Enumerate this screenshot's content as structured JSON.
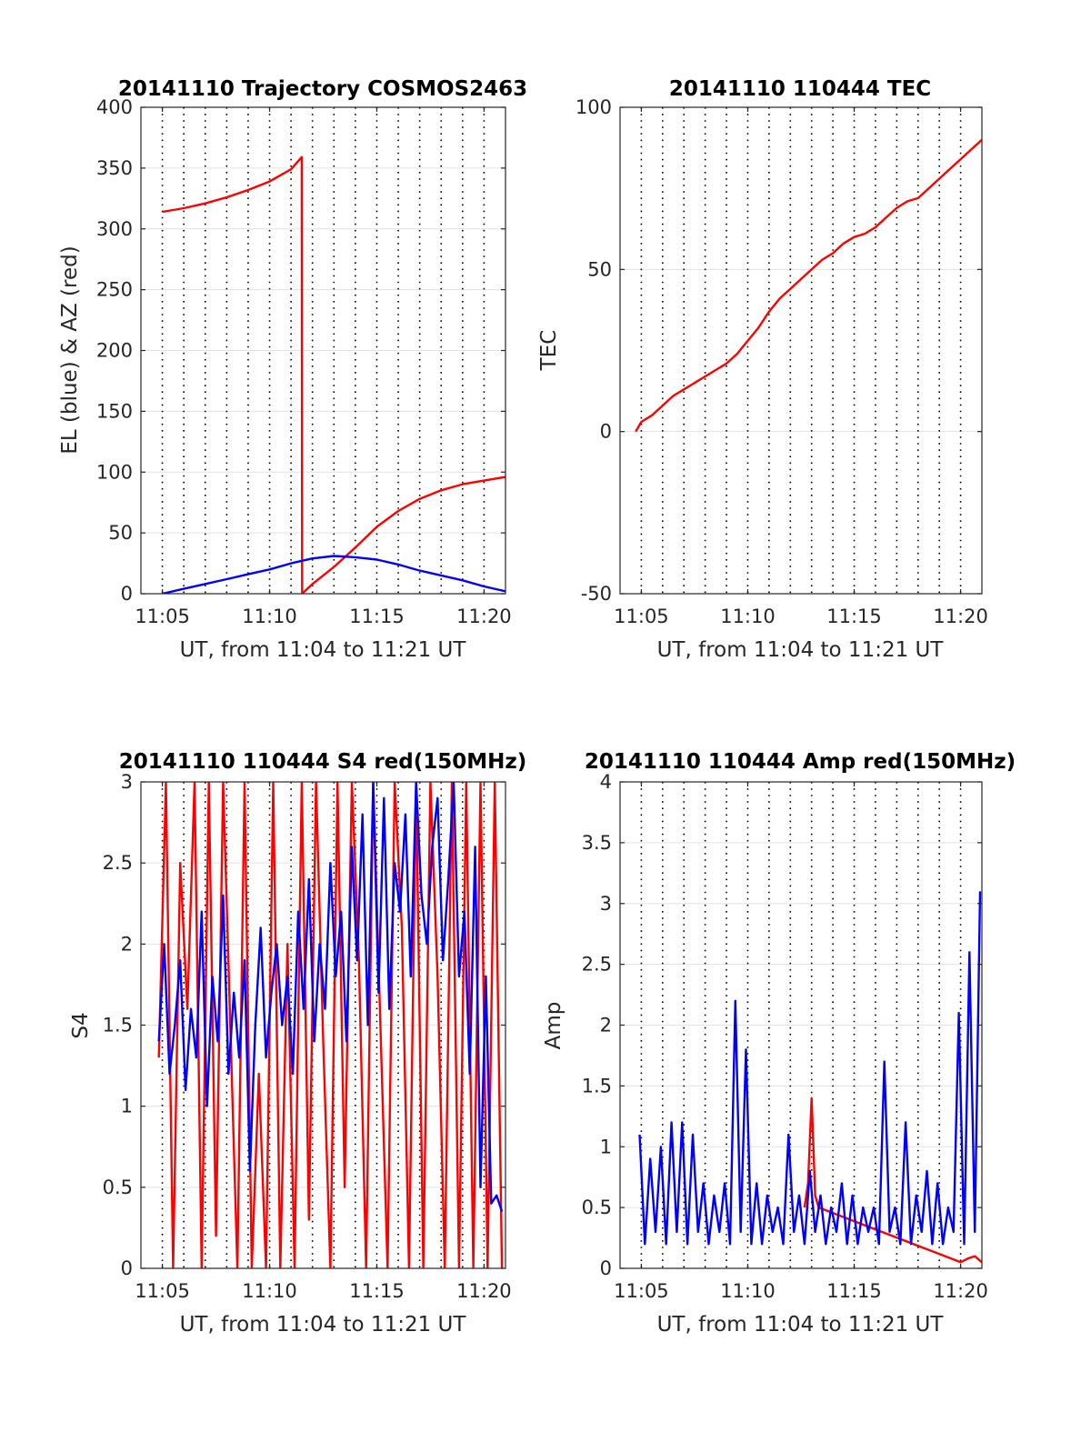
{
  "figure": {
    "colors": {
      "background": "#ffffff",
      "grid": "#e3e3e3",
      "axis": "#262626",
      "red_series": "#ff0000",
      "blue_series": "#0000ff"
    }
  },
  "chart_data": [
    {
      "type": "line",
      "title": "20141110 Trajectory COSMOS2463",
      "xlabel": "UT, from 11:04 to 11:21 UT",
      "ylabel": "EL (blue) & AZ (red)",
      "xlim": [
        "11:04:00",
        "11:21:00"
      ],
      "xticks": [
        "11:05",
        "11:10",
        "11:15",
        "11:20"
      ],
      "ylim": [
        0,
        400
      ],
      "yticks": [
        "0",
        "50",
        "100",
        "150",
        "200",
        "250",
        "300",
        "350",
        "400"
      ],
      "grid": "horizontal",
      "vertical_markers": "dotted, every minute",
      "series": [
        {
          "color": "#ff0000",
          "x": [
            "11:05:00",
            "11:06:00",
            "11:07:00",
            "11:08:00",
            "11:09:00",
            "11:10:00",
            "11:11:00",
            "11:11:30",
            "11:11:31",
            "11:12:00",
            "11:13:00",
            "11:14:00",
            "11:15:00",
            "11:16:00",
            "11:17:00",
            "11:18:00",
            "11:19:00",
            "11:20:00",
            "11:21:00"
          ],
          "y": [
            314,
            317,
            321,
            326,
            332,
            339,
            349,
            359,
            0,
            8,
            22,
            38,
            55,
            68,
            78,
            85,
            90,
            93,
            96
          ]
        },
        {
          "color": "#0000ff",
          "x": [
            "11:05:00",
            "11:06:00",
            "11:07:00",
            "11:08:00",
            "11:09:00",
            "11:10:00",
            "11:11:00",
            "11:12:00",
            "11:13:00",
            "11:14:00",
            "11:15:00",
            "11:16:00",
            "11:17:00",
            "11:18:00",
            "11:19:00",
            "11:20:00",
            "11:21:00"
          ],
          "y": [
            0,
            4,
            8,
            12,
            16,
            20,
            25,
            29,
            31,
            30,
            28,
            24,
            19,
            15,
            11,
            6,
            2
          ]
        }
      ]
    },
    {
      "type": "line",
      "title": "20141110 110444 TEC",
      "xlabel": "UT, from 11:04 to 11:21 UT",
      "ylabel": "TEC",
      "xlim": [
        "11:04:00",
        "11:21:00"
      ],
      "xticks": [
        "11:05",
        "11:10",
        "11:15",
        "11:20"
      ],
      "ylim": [
        -50,
        100
      ],
      "yticks": [
        "-50",
        "0",
        "50",
        "100"
      ],
      "grid": "horizontal",
      "vertical_markers": "dotted, every minute",
      "series": [
        {
          "color": "#ff0000",
          "x": [
            "11:04:44",
            "11:05:00",
            "11:05:30",
            "11:06:00",
            "11:06:30",
            "11:07:00",
            "11:07:30",
            "11:08:00",
            "11:08:30",
            "11:09:00",
            "11:09:30",
            "11:10:00",
            "11:10:30",
            "11:11:00",
            "11:11:30",
            "11:12:00",
            "11:12:30",
            "11:13:00",
            "11:13:30",
            "11:14:00",
            "11:14:30",
            "11:15:00",
            "11:15:30",
            "11:16:00",
            "11:16:30",
            "11:17:00",
            "11:17:30",
            "11:18:00",
            "11:18:30",
            "11:19:00",
            "11:19:30",
            "11:20:00",
            "11:20:30",
            "11:21:00"
          ],
          "y": [
            0,
            3,
            5,
            8,
            11,
            13,
            15,
            17,
            19,
            21,
            24,
            28,
            32,
            37,
            41,
            44,
            47,
            50,
            53,
            55,
            58,
            60,
            61,
            63,
            66,
            69,
            71,
            72,
            75,
            78,
            81,
            84,
            87,
            90
          ]
        }
      ]
    },
    {
      "type": "line",
      "title": "20141110 110444 S4 red(150MHz)",
      "xlabel": "UT, from 11:04 to 11:21 UT",
      "ylabel": "S4",
      "xlim": [
        "11:04:00",
        "11:21:00"
      ],
      "xticks": [
        "11:05",
        "11:10",
        "11:15",
        "11:20"
      ],
      "ylim": [
        0,
        3
      ],
      "yticks": [
        "0",
        "0.5",
        "1",
        "1.5",
        "2",
        "2.5",
        "3"
      ],
      "grid": "horizontal",
      "vertical_markers": "dotted, every minute",
      "series": [
        {
          "color": "#ff0000",
          "x": [
            "11:04:50",
            "11:05:10",
            "11:05:30",
            "11:05:50",
            "11:06:10",
            "11:06:30",
            "11:06:50",
            "11:07:10",
            "11:07:30",
            "11:07:50",
            "11:08:10",
            "11:08:30",
            "11:08:50",
            "11:09:10",
            "11:09:30",
            "11:09:50",
            "11:10:10",
            "11:10:30",
            "11:10:50",
            "11:11:10",
            "11:11:30",
            "11:11:50",
            "11:12:10",
            "11:12:30",
            "11:12:50",
            "11:13:10",
            "11:13:30",
            "11:13:50",
            "11:14:10",
            "11:14:30",
            "11:14:50",
            "11:15:10",
            "11:15:30",
            "11:15:50",
            "11:16:10",
            "11:16:30",
            "11:16:50",
            "11:17:10",
            "11:17:30",
            "11:17:50",
            "11:18:10",
            "11:18:30",
            "11:18:50",
            "11:19:10",
            "11:19:30",
            "11:19:50",
            "11:20:10",
            "11:20:30",
            "11:20:50"
          ],
          "y": [
            1.3,
            3,
            0,
            2.5,
            1.6,
            3,
            0,
            3,
            0.2,
            3,
            1.5,
            0,
            3,
            0,
            1.2,
            0,
            3,
            0,
            2,
            0,
            3,
            0.3,
            3,
            1.4,
            0,
            3,
            0.5,
            3,
            1.9,
            0,
            3,
            1.5,
            0,
            3,
            2.1,
            0,
            3,
            0,
            3,
            1.8,
            0,
            3,
            0,
            3,
            0,
            3,
            0,
            3,
            0
          ]
        },
        {
          "color": "#0000ff",
          "x": [
            "11:04:50",
            "11:05:05",
            "11:05:20",
            "11:05:35",
            "11:05:50",
            "11:06:05",
            "11:06:20",
            "11:06:35",
            "11:06:50",
            "11:07:05",
            "11:07:20",
            "11:07:35",
            "11:07:50",
            "11:08:05",
            "11:08:20",
            "11:08:35",
            "11:08:50",
            "11:09:05",
            "11:09:20",
            "11:09:35",
            "11:09:50",
            "11:10:05",
            "11:10:20",
            "11:10:35",
            "11:10:50",
            "11:11:05",
            "11:11:20",
            "11:11:35",
            "11:11:50",
            "11:12:05",
            "11:12:20",
            "11:12:35",
            "11:12:50",
            "11:13:05",
            "11:13:20",
            "11:13:35",
            "11:13:50",
            "11:14:05",
            "11:14:20",
            "11:14:35",
            "11:14:50",
            "11:15:05",
            "11:15:20",
            "11:15:35",
            "11:15:50",
            "11:16:05",
            "11:16:20",
            "11:16:35",
            "11:16:50",
            "11:17:05",
            "11:17:20",
            "11:17:35",
            "11:17:50",
            "11:18:05",
            "11:18:20",
            "11:18:35",
            "11:18:50",
            "11:19:05",
            "11:19:20",
            "11:19:35",
            "11:19:50",
            "11:20:05",
            "11:20:20",
            "11:20:35",
            "11:20:50"
          ],
          "y": [
            1.4,
            2.0,
            1.2,
            1.5,
            1.9,
            1.1,
            1.6,
            1.3,
            2.2,
            1.0,
            1.8,
            1.4,
            2.3,
            1.2,
            1.7,
            1.3,
            1.9,
            0.6,
            1.5,
            2.1,
            1.3,
            1.7,
            2.0,
            1.5,
            1.8,
            1.2,
            2.2,
            1.6,
            2.4,
            1.4,
            2.0,
            1.6,
            2.5,
            1.8,
            2.2,
            1.4,
            2.6,
            1.9,
            2.8,
            1.5,
            3.0,
            1.7,
            2.9,
            1.6,
            2.5,
            2.2,
            2.8,
            1.8,
            3.0,
            2.3,
            2.0,
            2.6,
            2.9,
            1.9,
            2.4,
            3.0,
            1.8,
            2.2,
            1.2,
            2.6,
            0.5,
            1.8,
            0.4,
            0.45,
            0.35
          ]
        }
      ]
    },
    {
      "type": "line",
      "title": "20141110 110444 Amp red(150MHz)",
      "xlabel": "UT, from 11:04 to 11:21 UT",
      "ylabel": "Amp",
      "xlim": [
        "11:04:00",
        "11:21:00"
      ],
      "xticks": [
        "11:05",
        "11:10",
        "11:15",
        "11:20"
      ],
      "ylim": [
        0,
        4
      ],
      "yticks": [
        "0",
        "0.5",
        "1",
        "1.5",
        "2",
        "2.5",
        "3",
        "3.5",
        "4"
      ],
      "grid": "horizontal",
      "vertical_markers": "dotted, every minute",
      "series": [
        {
          "color": "#ff0000",
          "x": [
            "11:12:40",
            "11:12:50",
            "11:13:00",
            "11:13:10",
            "11:13:20",
            "11:20:00",
            "11:20:20",
            "11:20:40",
            "11:21:00"
          ],
          "y": [
            0.5,
            0.7,
            1.4,
            0.6,
            0.5,
            0.05,
            0.08,
            0.1,
            0.05
          ]
        },
        {
          "color": "#0000ff",
          "x": [
            "11:04:55",
            "11:05:10",
            "11:05:25",
            "11:05:40",
            "11:05:55",
            "11:06:10",
            "11:06:25",
            "11:06:40",
            "11:06:55",
            "11:07:10",
            "11:07:25",
            "11:07:40",
            "11:07:55",
            "11:08:10",
            "11:08:25",
            "11:08:40",
            "11:08:55",
            "11:09:10",
            "11:09:25",
            "11:09:40",
            "11:09:55",
            "11:10:10",
            "11:10:25",
            "11:10:40",
            "11:10:55",
            "11:11:10",
            "11:11:25",
            "11:11:40",
            "11:11:55",
            "11:12:10",
            "11:12:25",
            "11:12:40",
            "11:12:55",
            "11:13:10",
            "11:13:25",
            "11:13:40",
            "11:13:55",
            "11:14:10",
            "11:14:25",
            "11:14:40",
            "11:14:55",
            "11:15:10",
            "11:15:25",
            "11:15:40",
            "11:15:55",
            "11:16:10",
            "11:16:25",
            "11:16:40",
            "11:16:55",
            "11:17:10",
            "11:17:25",
            "11:17:40",
            "11:17:55",
            "11:18:10",
            "11:18:25",
            "11:18:40",
            "11:18:55",
            "11:19:10",
            "11:19:25",
            "11:19:40",
            "11:19:55",
            "11:20:10",
            "11:20:25",
            "11:20:40",
            "11:20:55"
          ],
          "y": [
            1.1,
            0.2,
            0.9,
            0.3,
            1.0,
            0.2,
            1.2,
            0.3,
            1.2,
            0.2,
            1.1,
            0.3,
            0.7,
            0.2,
            0.6,
            0.3,
            0.7,
            0.2,
            2.2,
            0.3,
            1.8,
            0.2,
            0.7,
            0.2,
            0.6,
            0.3,
            0.5,
            0.2,
            1.1,
            0.3,
            0.6,
            0.2,
            0.8,
            0.3,
            0.6,
            0.2,
            0.5,
            0.3,
            0.7,
            0.2,
            0.6,
            0.2,
            0.5,
            0.3,
            0.5,
            0.2,
            1.7,
            0.3,
            0.5,
            0.2,
            1.2,
            0.2,
            0.6,
            0.3,
            0.8,
            0.2,
            0.7,
            0.2,
            0.5,
            0.3,
            2.1,
            0.2,
            2.6,
            0.3,
            3.1
          ]
        }
      ]
    }
  ]
}
